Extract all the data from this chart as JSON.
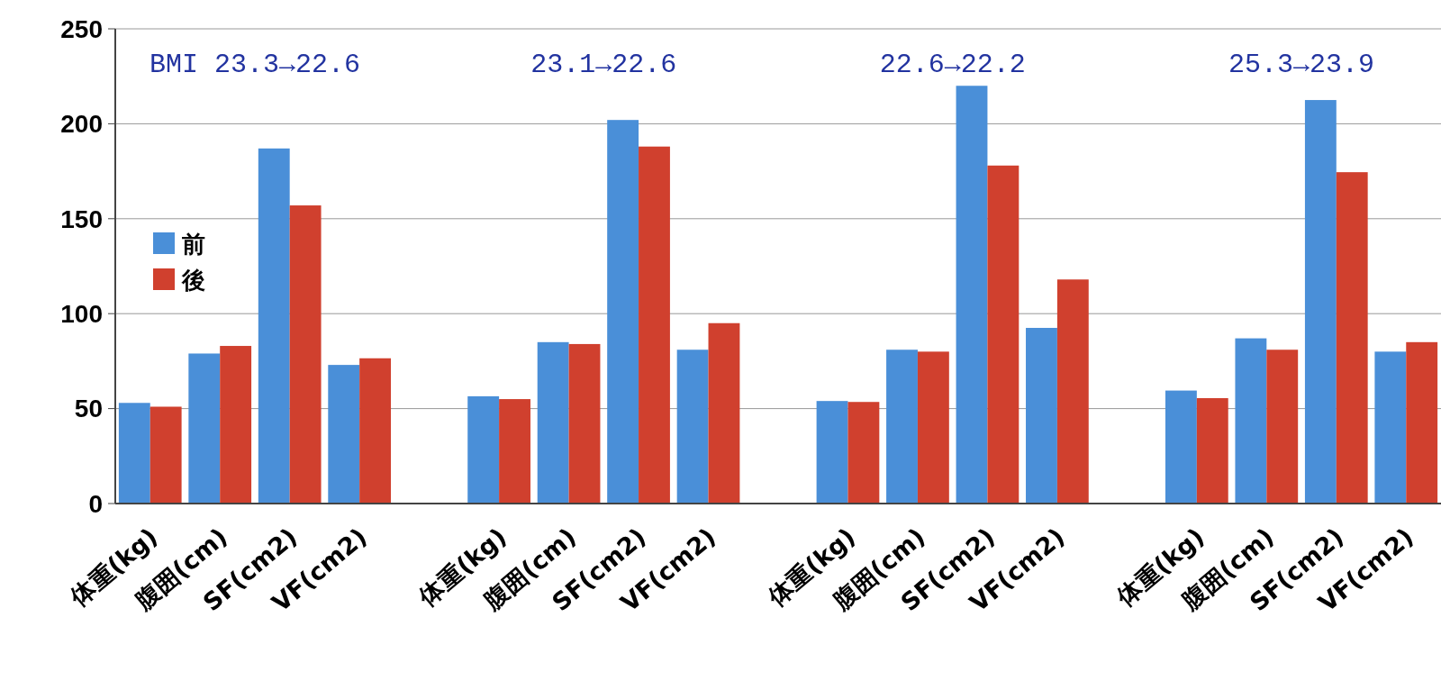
{
  "chart_data": {
    "type": "bar",
    "categories": [
      "体重(kg)",
      "腹囲(cm)",
      "SF(cm2)",
      "VF(cm2)",
      null,
      "体重(kg)",
      "腹囲(cm)",
      "SF(cm2)",
      "VF(cm2)",
      null,
      "体重(kg)",
      "腹囲(cm)",
      "SF(cm2)",
      "VF(cm2)",
      null,
      "体重(kg)",
      "腹囲(cm)",
      "SF(cm2)",
      "VF(cm2)"
    ],
    "series": [
      {
        "name": "前",
        "color": "#4a8fd8",
        "values": [
          53,
          79,
          187,
          73,
          null,
          56.5,
          85,
          202,
          81,
          null,
          54,
          81,
          220,
          92.5,
          null,
          59.5,
          87,
          212.5,
          80
        ]
      },
      {
        "name": "後",
        "color": "#d0402e",
        "values": [
          51,
          83,
          157,
          76.5,
          null,
          55,
          84,
          188,
          95,
          null,
          53.5,
          80,
          178,
          118,
          null,
          55.5,
          81,
          174.5,
          85
        ]
      }
    ],
    "ylim": [
      0,
      250
    ],
    "yticks": [
      0,
      50,
      100,
      150,
      200,
      250
    ],
    "grid": "y",
    "legend": "top left",
    "annotations": [
      "BMI 23.3→22.6",
      "23.1→22.6",
      "22.6→22.2",
      "25.3→23.9"
    ]
  }
}
